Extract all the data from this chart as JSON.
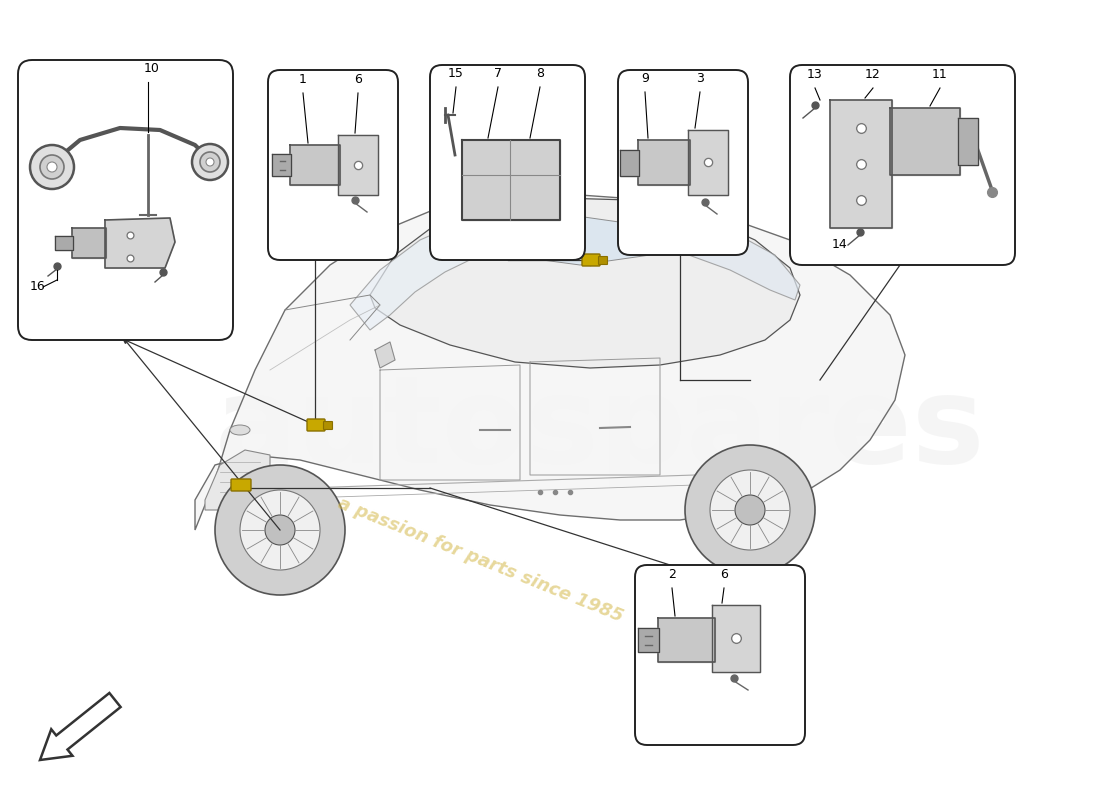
{
  "background_color": "#ffffff",
  "line_color": "#333333",
  "car_stroke": "#555555",
  "car_fill": "#f8f8f8",
  "part_box_stroke": "#222222",
  "label_color": "#111111",
  "watermark_text": "a passion for parts since 1985",
  "watermark_color": "#d4b84a",
  "watermark_alpha": 0.55,
  "brand_watermark": "autospares",
  "brand_color": "#cccccc",
  "brand_alpha": 0.18,
  "arrow_fill": "#ffffff",
  "arrow_edge": "#333333",
  "sensor_yellow_fill": "#c8a800",
  "sensor_yellow_edge": "#8a7000"
}
